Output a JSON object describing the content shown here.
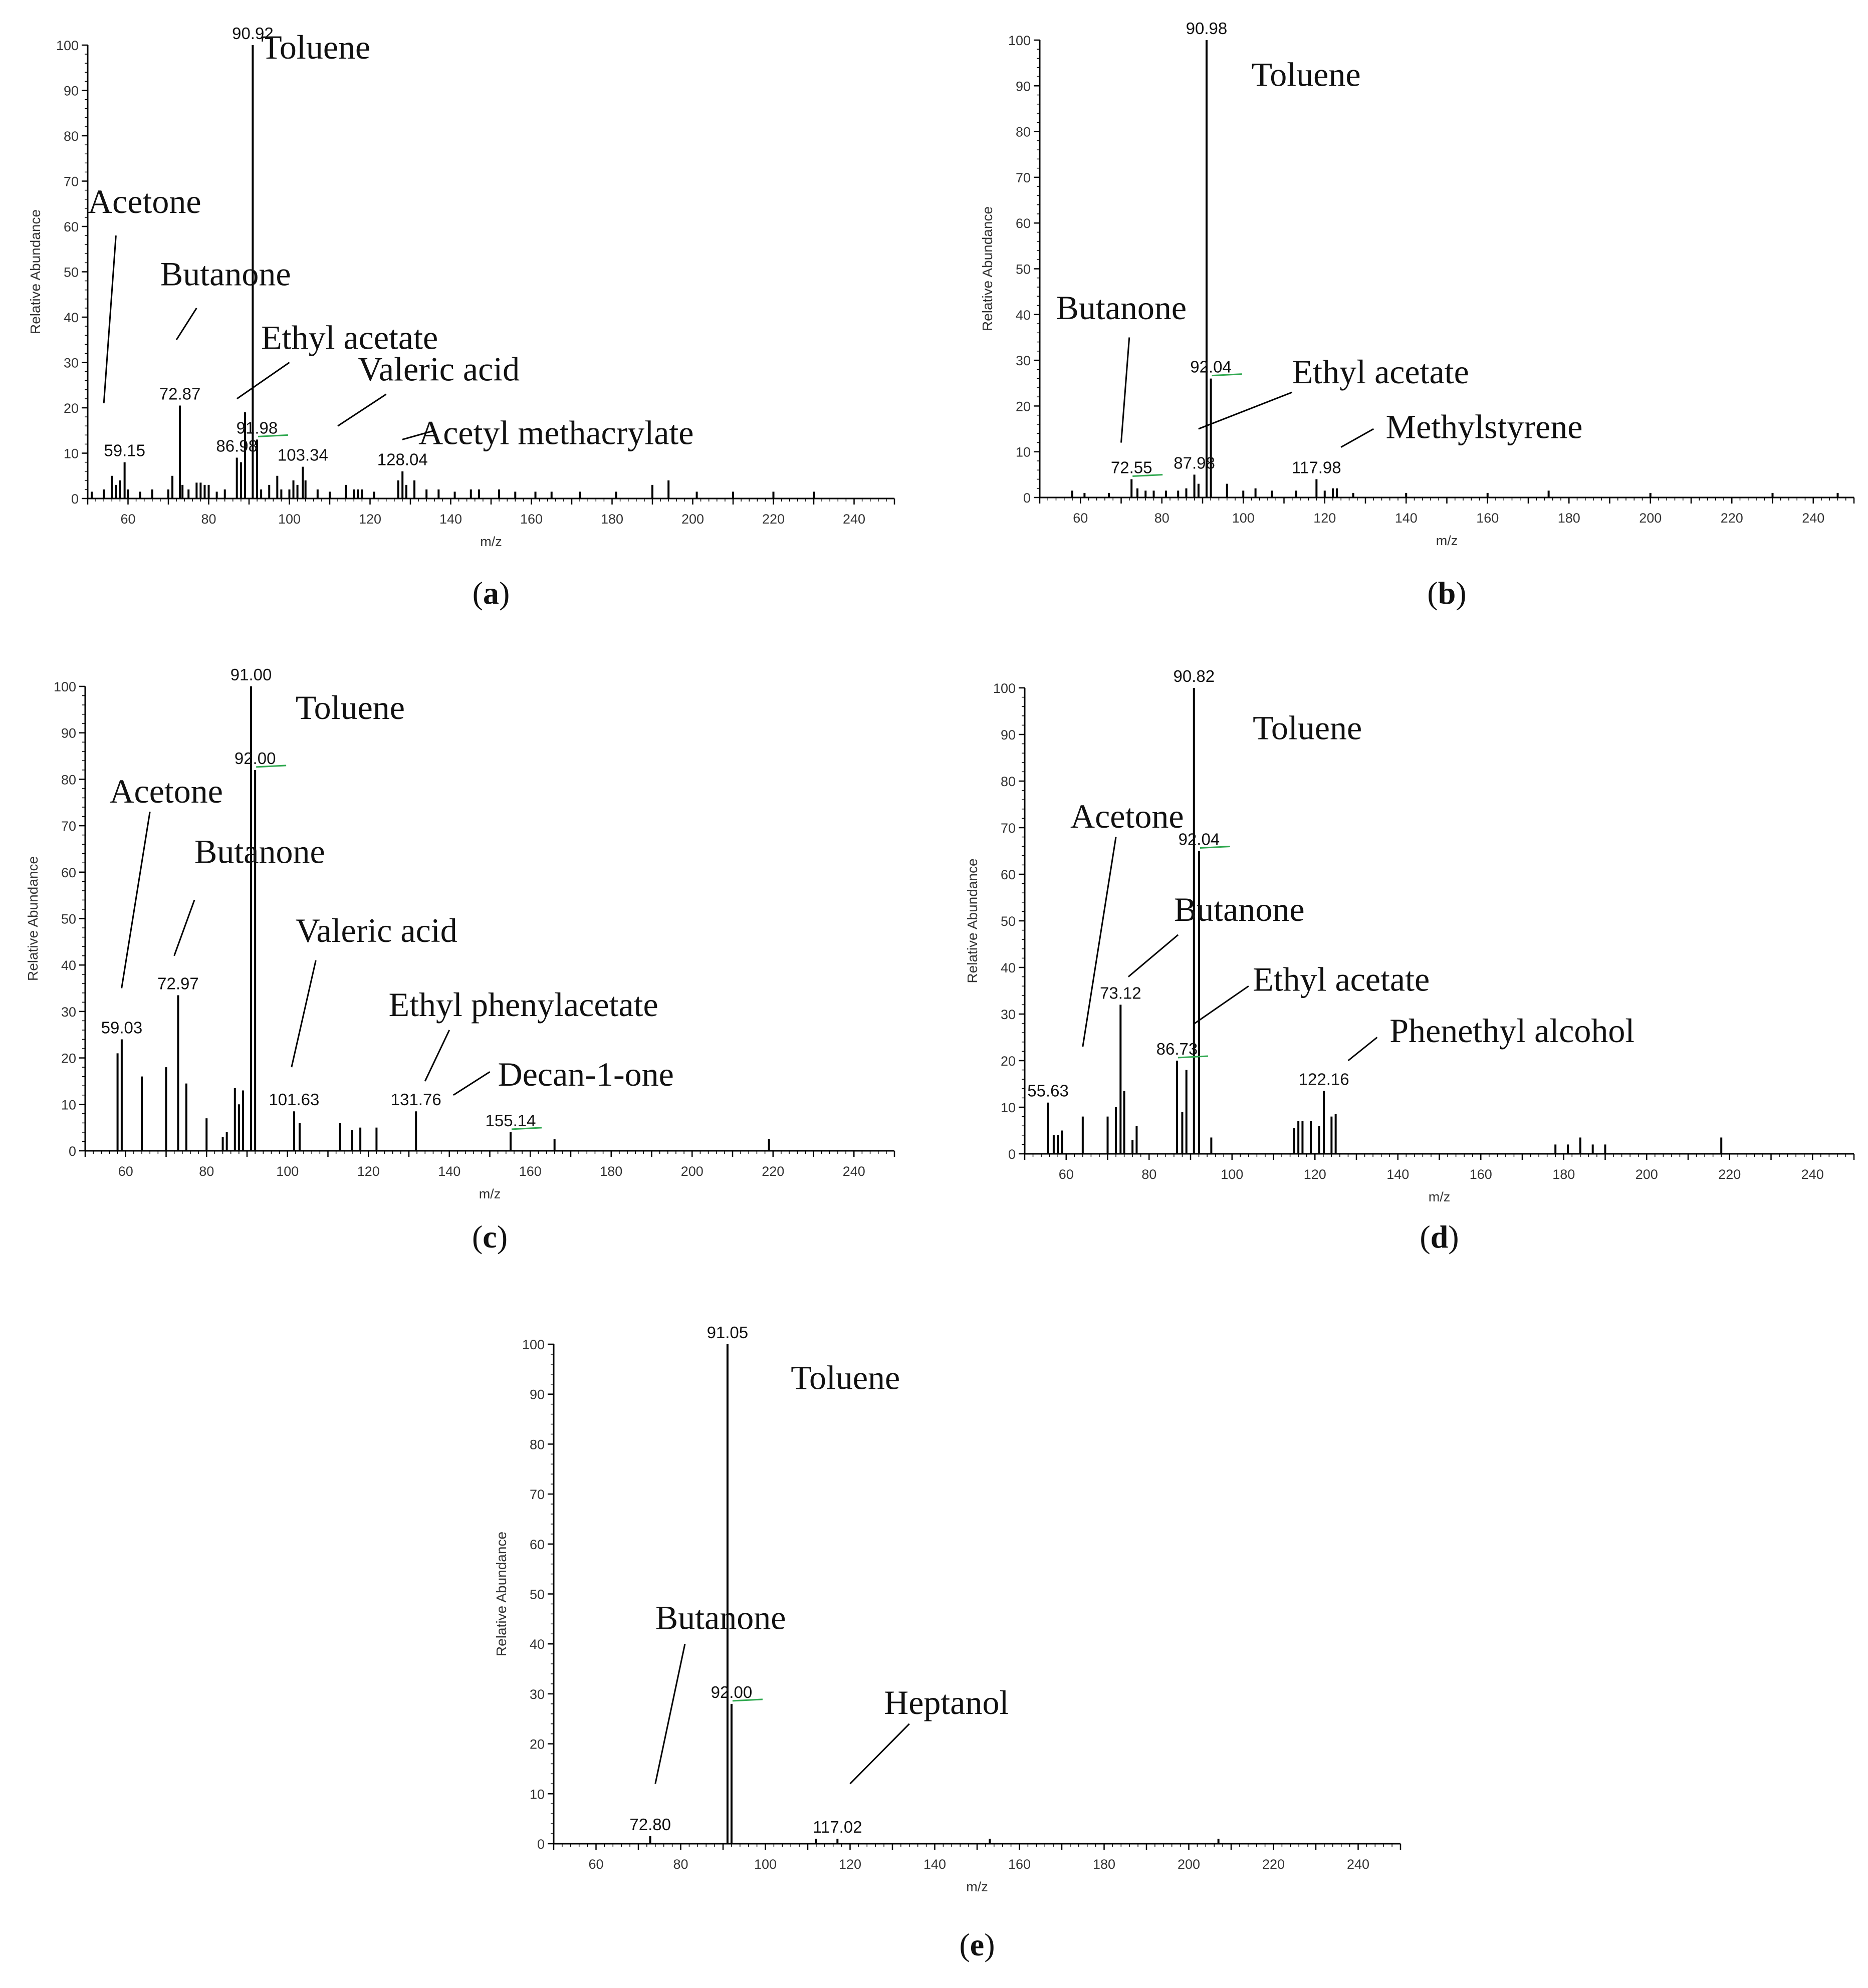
{
  "chart_data": [
    {
      "id": "a",
      "type": "bar",
      "panel_label": "(a)",
      "panel_letter": "a",
      "xlabel": "m/z",
      "ylabel": "Relative Abundance",
      "xlim": [
        50,
        250
      ],
      "ylim": [
        0,
        100
      ],
      "xticks": [
        60,
        80,
        100,
        120,
        140,
        160,
        180,
        200,
        220,
        240
      ],
      "yticks": [
        0,
        10,
        20,
        30,
        40,
        50,
        60,
        70,
        80,
        90,
        100
      ],
      "peak_labels": [
        {
          "text": "90.92",
          "x": 90.92,
          "y": 100
        },
        {
          "text": "72.87",
          "x": 72.87,
          "y": 20.5
        },
        {
          "text": "59.15",
          "x": 59.15,
          "y": 8
        },
        {
          "text": "86.98",
          "x": 86.98,
          "y": 9
        },
        {
          "text": "91.98",
          "x": 91.98,
          "y": 13,
          "marker": true
        },
        {
          "text": "103.34",
          "x": 103.34,
          "y": 7
        },
        {
          "text": "128.04",
          "x": 128.04,
          "y": 6
        }
      ],
      "compounds": [
        {
          "text": "Toluene",
          "x": 93,
          "y": 97
        },
        {
          "text": "Acetone",
          "x": 50,
          "y": 63,
          "line": [
            [
              57,
              58
            ],
            [
              54,
              21
            ]
          ]
        },
        {
          "text": "Butanone",
          "x": 68,
          "y": 47,
          "line": [
            [
              77,
              42
            ],
            [
              72,
              35
            ]
          ]
        },
        {
          "text": "Ethyl acetate",
          "x": 93,
          "y": 33,
          "line": [
            [
              100,
              30
            ],
            [
              87,
              22
            ]
          ]
        },
        {
          "text": "Valeric acid",
          "x": 117,
          "y": 26,
          "line": [
            [
              124,
              23
            ],
            [
              112,
              16
            ]
          ]
        },
        {
          "text": "Acetyl methacrylate",
          "x": 132,
          "y": 12,
          "line": [
            [
              136,
              15
            ],
            [
              128,
              13
            ]
          ]
        }
      ],
      "peaks": [
        [
          51,
          1.5
        ],
        [
          54,
          2
        ],
        [
          56,
          5
        ],
        [
          57,
          3
        ],
        [
          58,
          4
        ],
        [
          59.15,
          8
        ],
        [
          60,
          2
        ],
        [
          63,
          1.5
        ],
        [
          66,
          2
        ],
        [
          70,
          2
        ],
        [
          71,
          5
        ],
        [
          72.87,
          20.5
        ],
        [
          73.5,
          3
        ],
        [
          75,
          2
        ],
        [
          77,
          3.5
        ],
        [
          78,
          3.5
        ],
        [
          79,
          3
        ],
        [
          80,
          3
        ],
        [
          82,
          1.5
        ],
        [
          84,
          2
        ],
        [
          86.98,
          9
        ],
        [
          88,
          8
        ],
        [
          89,
          19
        ],
        [
          90.92,
          100
        ],
        [
          91.98,
          13
        ],
        [
          93,
          2
        ],
        [
          95,
          3
        ],
        [
          97,
          5
        ],
        [
          98,
          2
        ],
        [
          100,
          2
        ],
        [
          101,
          4
        ],
        [
          102,
          3
        ],
        [
          103.34,
          7
        ],
        [
          104,
          4
        ],
        [
          107,
          2
        ],
        [
          110,
          1.5
        ],
        [
          114,
          3
        ],
        [
          116,
          2
        ],
        [
          117,
          2
        ],
        [
          118,
          2
        ],
        [
          121,
          1.5
        ],
        [
          127,
          4
        ],
        [
          128.04,
          6
        ],
        [
          129,
          3
        ],
        [
          131,
          4
        ],
        [
          134,
          2
        ],
        [
          137,
          2
        ],
        [
          141,
          1.5
        ],
        [
          145,
          2
        ],
        [
          147,
          2
        ],
        [
          152,
          2
        ],
        [
          156,
          1.5
        ],
        [
          161,
          1.5
        ],
        [
          165,
          1.5
        ],
        [
          172,
          1.5
        ],
        [
          181,
          1.5
        ],
        [
          190,
          3
        ],
        [
          194,
          4
        ],
        [
          201,
          1.5
        ],
        [
          210,
          1.5
        ],
        [
          220,
          1.5
        ],
        [
          230,
          1.5
        ]
      ]
    },
    {
      "id": "b",
      "type": "bar",
      "panel_label": "(b)",
      "panel_letter": "b",
      "xlabel": "m/z",
      "ylabel": "Relative Abundance",
      "xlim": [
        50,
        250
      ],
      "ylim": [
        0,
        100
      ],
      "xticks": [
        60,
        80,
        100,
        120,
        140,
        160,
        180,
        200,
        220,
        240
      ],
      "yticks": [
        0,
        10,
        20,
        30,
        40,
        50,
        60,
        70,
        80,
        90,
        100
      ],
      "peak_labels": [
        {
          "text": "90.98",
          "x": 90.98,
          "y": 100
        },
        {
          "text": "92.04",
          "x": 92.04,
          "y": 26,
          "marker": true
        },
        {
          "text": "72.55",
          "x": 72.55,
          "y": 4,
          "marker": true
        },
        {
          "text": "87.98",
          "x": 87.98,
          "y": 5
        },
        {
          "text": "117.98",
          "x": 117.98,
          "y": 4
        }
      ],
      "compounds": [
        {
          "text": "Toluene",
          "x": 102,
          "y": 90
        },
        {
          "text": "Butanone",
          "x": 54,
          "y": 39,
          "line": [
            [
              72,
              35
            ],
            [
              70,
              12
            ]
          ]
        },
        {
          "text": "Ethyl acetate",
          "x": 112,
          "y": 25,
          "line": [
            [
              112,
              23
            ],
            [
              89,
              15
            ]
          ]
        },
        {
          "text": "Methylstyrene",
          "x": 135,
          "y": 13,
          "line": [
            [
              132,
              15
            ],
            [
              124,
              11
            ]
          ]
        }
      ],
      "peaks": [
        [
          58,
          1.5
        ],
        [
          61,
          1
        ],
        [
          67,
          1
        ],
        [
          72.55,
          4
        ],
        [
          74,
          2
        ],
        [
          76,
          1.5
        ],
        [
          78,
          1.5
        ],
        [
          81,
          1.5
        ],
        [
          84,
          1.5
        ],
        [
          86,
          2
        ],
        [
          87.98,
          5
        ],
        [
          89,
          3
        ],
        [
          90.98,
          100
        ],
        [
          92.04,
          26
        ],
        [
          96,
          3
        ],
        [
          100,
          1.5
        ],
        [
          103,
          2
        ],
        [
          107,
          1.5
        ],
        [
          113,
          1.5
        ],
        [
          117.98,
          4
        ],
        [
          120,
          1.5
        ],
        [
          122,
          2
        ],
        [
          123,
          2
        ],
        [
          127,
          1
        ],
        [
          140,
          1
        ],
        [
          160,
          1
        ],
        [
          175,
          1.5
        ],
        [
          200,
          1
        ],
        [
          230,
          1
        ],
        [
          246,
          1
        ]
      ]
    },
    {
      "id": "c",
      "type": "bar",
      "panel_label": "(c)",
      "panel_letter": "c",
      "xlabel": "m/z",
      "ylabel": "Relative Abundance",
      "xlim": [
        50,
        250
      ],
      "ylim": [
        0,
        100
      ],
      "xticks": [
        60,
        80,
        100,
        120,
        140,
        160,
        180,
        200,
        220,
        240
      ],
      "yticks": [
        0,
        10,
        20,
        30,
        40,
        50,
        60,
        70,
        80,
        90,
        100
      ],
      "peak_labels": [
        {
          "text": "91.00",
          "x": 91.0,
          "y": 100
        },
        {
          "text": "92.00",
          "x": 92.0,
          "y": 82,
          "marker": true
        },
        {
          "text": "59.03",
          "x": 59.03,
          "y": 24
        },
        {
          "text": "72.97",
          "x": 72.97,
          "y": 33.5
        },
        {
          "text": "101.63",
          "x": 101.63,
          "y": 8.5
        },
        {
          "text": "131.76",
          "x": 131.76,
          "y": 8.5
        },
        {
          "text": "155.14",
          "x": 155.14,
          "y": 4,
          "marker": true
        }
      ],
      "compounds": [
        {
          "text": "Toluene",
          "x": 102,
          "y": 93
        },
        {
          "text": "Acetone",
          "x": 56,
          "y": 75,
          "line": [
            [
              66,
              73
            ],
            [
              59,
              35
            ]
          ]
        },
        {
          "text": "Butanone",
          "x": 77,
          "y": 62,
          "line": [
            [
              77,
              54
            ],
            [
              72,
              42
            ]
          ]
        },
        {
          "text": "Valeric acid",
          "x": 102,
          "y": 45,
          "line": [
            [
              107,
              41
            ],
            [
              101,
              18
            ]
          ]
        },
        {
          "text": "Ethyl phenylacetate",
          "x": 125,
          "y": 29,
          "line": [
            [
              140,
              26
            ],
            [
              134,
              15
            ]
          ]
        },
        {
          "text": "Decan-1-one",
          "x": 152,
          "y": 14,
          "line": [
            [
              150,
              17
            ],
            [
              141,
              12
            ]
          ]
        }
      ],
      "peaks": [
        [
          58,
          21
        ],
        [
          59.03,
          24
        ],
        [
          64,
          16
        ],
        [
          70,
          18
        ],
        [
          72.97,
          33.5
        ],
        [
          75,
          14.5
        ],
        [
          80,
          7
        ],
        [
          84,
          3
        ],
        [
          85,
          4
        ],
        [
          87,
          13.5
        ],
        [
          88,
          10
        ],
        [
          89,
          13
        ],
        [
          91.0,
          100
        ],
        [
          92.0,
          82
        ],
        [
          101.63,
          8.5
        ],
        [
          103,
          6
        ],
        [
          113,
          6
        ],
        [
          116,
          4.5
        ],
        [
          118,
          5
        ],
        [
          122,
          5
        ],
        [
          131.76,
          8.5
        ],
        [
          155.14,
          4
        ],
        [
          166,
          2.5
        ],
        [
          219,
          2.5
        ]
      ]
    },
    {
      "id": "d",
      "type": "bar",
      "panel_label": "(d)",
      "panel_letter": "d",
      "xlabel": "m/z",
      "ylabel": "Relative Abundance",
      "xlim": [
        50,
        250
      ],
      "ylim": [
        0,
        100
      ],
      "xticks": [
        60,
        80,
        100,
        120,
        140,
        160,
        180,
        200,
        220,
        240
      ],
      "yticks": [
        0,
        10,
        20,
        30,
        40,
        50,
        60,
        70,
        80,
        90,
        100
      ],
      "peak_labels": [
        {
          "text": "90.82",
          "x": 90.82,
          "y": 100
        },
        {
          "text": "92.04",
          "x": 92.04,
          "y": 65,
          "marker": true
        },
        {
          "text": "73.12",
          "x": 73.12,
          "y": 32
        },
        {
          "text": "86.73",
          "x": 86.73,
          "y": 20,
          "marker": true
        },
        {
          "text": "55.63",
          "x": 55.63,
          "y": 11
        },
        {
          "text": "122.16",
          "x": 122.16,
          "y": 13.5
        }
      ],
      "compounds": [
        {
          "text": "Toluene",
          "x": 105,
          "y": 89
        },
        {
          "text": "Acetone",
          "x": 61,
          "y": 70,
          "line": [
            [
              72,
              68
            ],
            [
              64,
              23
            ]
          ]
        },
        {
          "text": "Butanone",
          "x": 86,
          "y": 50,
          "line": [
            [
              87,
              47
            ],
            [
              75,
              38
            ]
          ]
        },
        {
          "text": "Ethyl acetate",
          "x": 105,
          "y": 35,
          "line": [
            [
              104,
              36
            ],
            [
              91,
              28
            ]
          ]
        },
        {
          "text": "Phenethyl alcohol",
          "x": 138,
          "y": 24,
          "line": [
            [
              135,
              25
            ],
            [
              128,
              20
            ]
          ]
        }
      ],
      "peaks": [
        [
          55.63,
          11
        ],
        [
          57,
          4
        ],
        [
          58,
          4
        ],
        [
          59,
          5
        ],
        [
          64,
          8
        ],
        [
          70,
          8
        ],
        [
          72,
          10
        ],
        [
          73.12,
          32
        ],
        [
          74,
          13.5
        ],
        [
          76,
          3
        ],
        [
          77,
          6
        ],
        [
          86.73,
          20
        ],
        [
          88,
          9
        ],
        [
          89,
          18
        ],
        [
          90.82,
          100
        ],
        [
          92.04,
          65
        ],
        [
          95,
          3.5
        ],
        [
          115,
          5.5
        ],
        [
          116,
          7
        ],
        [
          117,
          7
        ],
        [
          119,
          7
        ],
        [
          121,
          6
        ],
        [
          122.16,
          13.5
        ],
        [
          124,
          8
        ],
        [
          125,
          8.5
        ],
        [
          178,
          2
        ],
        [
          181,
          2
        ],
        [
          184,
          3.5
        ],
        [
          187,
          2
        ],
        [
          190,
          2
        ],
        [
          218,
          3.5
        ]
      ]
    },
    {
      "id": "e",
      "type": "bar",
      "panel_label": "(e)",
      "panel_letter": "e",
      "xlabel": "m/z",
      "ylabel": "Relative Abundance",
      "xlim": [
        50,
        250
      ],
      "ylim": [
        0,
        100
      ],
      "xticks": [
        60,
        80,
        100,
        120,
        140,
        160,
        180,
        200,
        220,
        240
      ],
      "yticks": [
        0,
        10,
        20,
        30,
        40,
        50,
        60,
        70,
        80,
        90,
        100
      ],
      "peak_labels": [
        {
          "text": "91.05",
          "x": 91.05,
          "y": 100
        },
        {
          "text": "92.00",
          "x": 92.0,
          "y": 28,
          "marker": true
        },
        {
          "text": "72.80",
          "x": 72.8,
          "y": 1.5
        },
        {
          "text": "117.02",
          "x": 117.02,
          "y": 1
        }
      ],
      "compounds": [
        {
          "text": "Toluene",
          "x": 106,
          "y": 91
        },
        {
          "text": "Butanone",
          "x": 74,
          "y": 43,
          "line": [
            [
              81,
              40
            ],
            [
              74,
              12
            ]
          ]
        },
        {
          "text": "Heptanol",
          "x": 128,
          "y": 26,
          "line": [
            [
              134,
              24
            ],
            [
              120,
              12
            ]
          ]
        }
      ],
      "peaks": [
        [
          72.8,
          1.5
        ],
        [
          91.05,
          100
        ],
        [
          92.0,
          28
        ],
        [
          112,
          1
        ],
        [
          117.02,
          1
        ],
        [
          153,
          1
        ],
        [
          207,
          1
        ]
      ]
    }
  ]
}
